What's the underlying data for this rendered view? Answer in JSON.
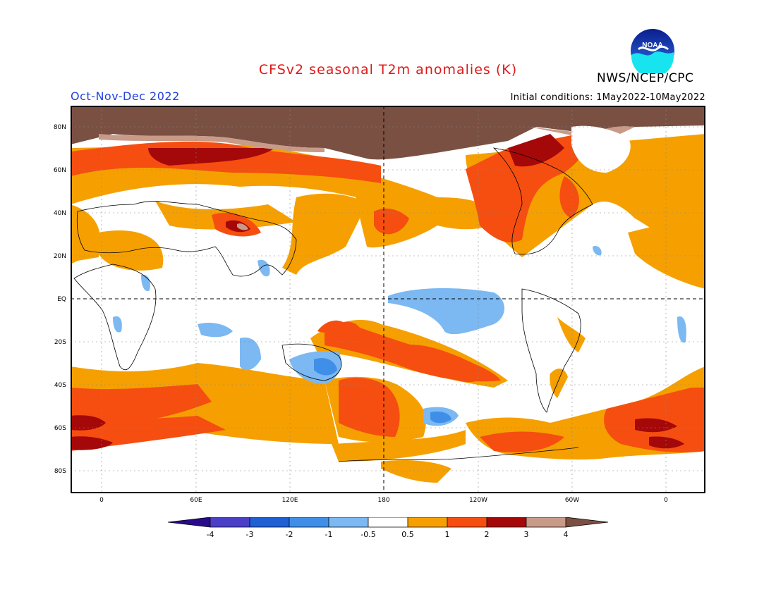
{
  "header": {
    "title": "CFSv2 seasonal T2m anomalies (K)",
    "agency": "NWS/NCEP/CPC",
    "season": "Oct-Nov-Dec 2022",
    "initial_conditions": "Initial conditions: 1May2022-10May2022",
    "logo_text": "NOAA"
  },
  "map": {
    "lat_labels": [
      "80N",
      "60N",
      "40N",
      "20N",
      "EQ",
      "20S",
      "40S",
      "60S",
      "80S"
    ],
    "lon_labels": [
      "0",
      "60E",
      "120E",
      "180",
      "120W",
      "60W",
      "0"
    ]
  },
  "colorbar": {
    "labels": [
      "-4",
      "-3",
      "-2",
      "-1",
      "-0.5",
      "0.5",
      "1",
      "2",
      "3",
      "4"
    ],
    "colors": {
      "lt_-4": "#2a0a8c",
      "-4_-3": "#4b3fc8",
      "-3_-2": "#1f5fd4",
      "-2_-1": "#3f8fe8",
      "-1_-0.5": "#7cb8f2",
      "-0.5_0.5": "#ffffff",
      "0.5_1": "#f5a000",
      "1_2": "#f54e10",
      "2_3": "#a50808",
      "3_4": "#c89a88",
      "gt_4": "#7a5042"
    }
  }
}
